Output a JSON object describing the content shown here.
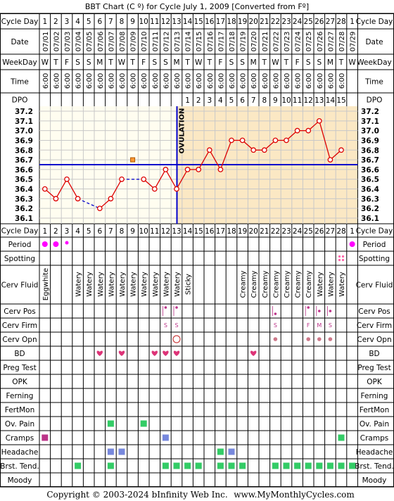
{
  "title": "BBT Chart (C º) for Cycle July 1, 2009  [Converted from Fº]",
  "footer": {
    "copyright": "Copyright © 2003-2024 bInfinity Web Inc.",
    "site": "www.MyMonthlyCycles.com"
  },
  "row_labels": {
    "cycle_day": "Cycle Day",
    "date": "Date",
    "weekday": "WeekDay",
    "time": "Time",
    "dpo": "DPO",
    "period": "Period",
    "spotting": "Spotting",
    "cerv_fluid": "Cerv Fluid",
    "cerv_pos": "Cerv Pos",
    "cerv_firm": "Cerv Firm",
    "cerv_opn": "Cerv Opn",
    "bd": "BD",
    "preg_test": "Preg Test",
    "opk": "OPK",
    "ferning": "Ferning",
    "fertmon": "FertMon",
    "ov_pain": "Ov. Pain",
    "cramps": "Cramps",
    "headache": "Headache",
    "brst_tend": "Brst. Tend.",
    "moody": "Moody"
  },
  "ovulation_label": "OVULATION",
  "colors": {
    "line": "#dd0000",
    "coverline": "#0000cc",
    "post_ovulation_bg": "#fbe8c4",
    "pre_ovulation_bg": "#fffdf0",
    "period": "#ff00ff",
    "green": "#33cc66",
    "blue": "#7788dd",
    "purple": "#bb3388",
    "heart": "#dd3377"
  },
  "days": [
    {
      "cd": "1",
      "date": "07/01",
      "wd": "W",
      "time": "6:00",
      "dpo": "",
      "temp": 36.4,
      "period": "dot-large",
      "fluid": "Eggwhite"
    },
    {
      "cd": "2",
      "date": "07/02",
      "wd": "T",
      "time": "6:00",
      "dpo": "",
      "temp": 36.3,
      "period": "dot-large",
      "fluid": ""
    },
    {
      "cd": "3",
      "date": "07/03",
      "wd": "F",
      "time": "6:00",
      "dpo": "",
      "temp": 36.5,
      "period": "dot-small",
      "fluid": ""
    },
    {
      "cd": "4",
      "date": "07/04",
      "wd": "S",
      "time": "6:00",
      "dpo": "",
      "temp": 36.3,
      "fluid": "Watery",
      "brst": true
    },
    {
      "cd": "5",
      "date": "07/05",
      "wd": "S",
      "time": "6:00",
      "dpo": "",
      "temp": null,
      "fluid": "Watery"
    },
    {
      "cd": "6",
      "date": "07/06",
      "wd": "M",
      "time": "6:00",
      "dpo": "",
      "temp": 36.2,
      "fluid": "Watery",
      "bd": true
    },
    {
      "cd": "7",
      "date": "07/07",
      "wd": "T",
      "time": "6:00",
      "dpo": "",
      "temp": 36.3,
      "fluid": "Watery",
      "ovpain": true,
      "headache": true,
      "brst": true
    },
    {
      "cd": "8",
      "date": "07/08",
      "wd": "W",
      "time": "6:00",
      "dpo": "",
      "temp": 36.5,
      "fluid": "Watery",
      "bd": true,
      "headache": true
    },
    {
      "cd": "9",
      "date": "07/09",
      "wd": "T",
      "time": "6:00",
      "dpo": "",
      "temp": null,
      "fluid": "Watery"
    },
    {
      "cd": "10",
      "date": "07/10",
      "wd": "F",
      "time": "6:00",
      "dpo": "",
      "temp": 36.5,
      "fluid": "Watery",
      "ovpain": true
    },
    {
      "cd": "11",
      "date": "07/11",
      "wd": "S",
      "time": "6:00",
      "dpo": "",
      "temp": 36.4,
      "fluid": "Watery",
      "bd": true
    },
    {
      "cd": "12",
      "date": "07/12",
      "wd": "S",
      "time": "6:00",
      "dpo": "",
      "temp": 36.6,
      "fluid": "Watery",
      "cpos": "dot-high",
      "cfirm": "S",
      "bd": true,
      "cramps": "blue",
      "brst": true
    },
    {
      "cd": "13",
      "date": "07/13",
      "wd": "M",
      "time": "6:00",
      "dpo": "",
      "temp": 36.4,
      "fluid": "Watery",
      "cpos": "dot-high",
      "cfirm": "S",
      "copn": "open",
      "bd": true,
      "brst": true
    },
    {
      "cd": "14",
      "date": "07/14",
      "wd": "T",
      "time": "6:00",
      "dpo": "1",
      "temp": 36.6,
      "fluid": "Sticky",
      "brst": true
    },
    {
      "cd": "15",
      "date": "07/15",
      "wd": "W",
      "time": "6:00",
      "dpo": "2",
      "temp": 36.6,
      "fluid": "",
      "brst": true
    },
    {
      "cd": "16",
      "date": "07/16",
      "wd": "T",
      "time": "6:00",
      "dpo": "3",
      "temp": 36.8,
      "fluid": ""
    },
    {
      "cd": "17",
      "date": "07/17",
      "wd": "F",
      "time": "6:00",
      "dpo": "4",
      "temp": 36.6,
      "fluid": "",
      "headache": true,
      "brst": true
    },
    {
      "cd": "18",
      "date": "07/18",
      "wd": "S",
      "time": "6:00",
      "dpo": "5",
      "temp": 36.9,
      "fluid": "",
      "headache": true,
      "brst": true
    },
    {
      "cd": "19",
      "date": "07/19",
      "wd": "S",
      "time": "6:00",
      "dpo": "6",
      "temp": 36.9,
      "fluid": "Creamy",
      "brst": true
    },
    {
      "cd": "20",
      "date": "07/20",
      "wd": "M",
      "time": "6:00",
      "dpo": "7",
      "temp": 36.8,
      "fluid": "Creamy",
      "bd": true
    },
    {
      "cd": "21",
      "date": "07/21",
      "wd": "T",
      "time": "6:00",
      "dpo": "8",
      "temp": 36.8,
      "fluid": "Creamy"
    },
    {
      "cd": "22",
      "date": "07/22",
      "wd": "W",
      "time": "6:00",
      "dpo": "9",
      "temp": 36.9,
      "fluid": "Creamy",
      "cpos": "dot-low",
      "cfirm": "S",
      "copn": "dot",
      "brst": true
    },
    {
      "cd": "23",
      "date": "07/23",
      "wd": "T",
      "time": "6:00",
      "dpo": "10",
      "temp": 36.9,
      "fluid": "Creamy",
      "brst": true
    },
    {
      "cd": "24",
      "date": "07/24",
      "wd": "F",
      "time": "6:00",
      "dpo": "11",
      "temp": 37.0,
      "fluid": "Creamy",
      "brst": true
    },
    {
      "cd": "25",
      "date": "07/25",
      "wd": "S",
      "time": "6:00",
      "dpo": "12",
      "temp": 37.0,
      "fluid": "Creamy",
      "cpos": "dot-high",
      "cfirm": "F",
      "copn": "dot",
      "brst": true
    },
    {
      "cd": "26",
      "date": "07/26",
      "wd": "S",
      "time": "6:00",
      "dpo": "13",
      "temp": 37.1,
      "fluid": "Watery",
      "cpos": "dot-mid",
      "cfirm": "M",
      "copn": "dot",
      "brst": true
    },
    {
      "cd": "27",
      "date": "07/27",
      "wd": "M",
      "time": "6:00",
      "dpo": "14",
      "temp": 36.7,
      "fluid": "Watery",
      "cpos": "dot-mid",
      "cfirm": "S",
      "copn": "dot",
      "brst": true
    },
    {
      "cd": "28",
      "date": "07/28",
      "wd": "T",
      "time": "6:00",
      "dpo": "15",
      "temp": 36.8,
      "fluid": "Watery",
      "spotting": true,
      "cramps": "green",
      "brst": true
    },
    {
      "cd": "1",
      "date": "07/29",
      "wd": "W",
      "time": "",
      "dpo": "",
      "temp": null,
      "period": "dot-large",
      "fluid": "",
      "brst": true
    }
  ],
  "cramps_day1": "purple",
  "chart_data": {
    "type": "line",
    "ylim": [
      36.1,
      37.2
    ],
    "yticks": [
      "37.2",
      "37.1",
      "37.0",
      "36.9",
      "36.8",
      "36.7",
      "36.6",
      "36.5",
      "36.4",
      "36.3",
      "36.2",
      "36.1"
    ],
    "coverline": 36.65,
    "ovulation_after_day_index": 12,
    "unconnected_point": {
      "day_index": 8,
      "temp": 36.7
    }
  }
}
